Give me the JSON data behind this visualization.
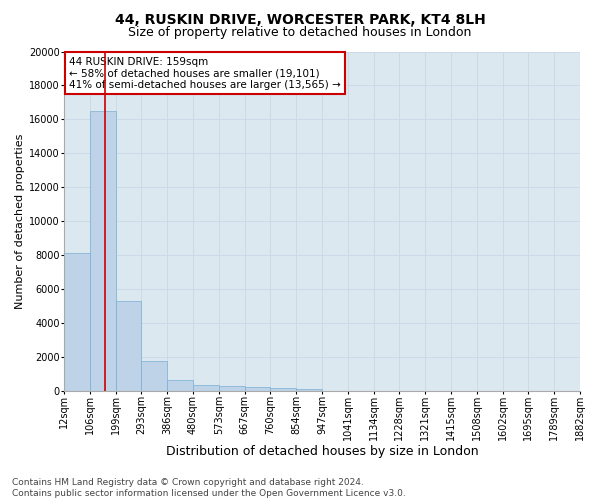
{
  "title": "44, RUSKIN DRIVE, WORCESTER PARK, KT4 8LH",
  "subtitle": "Size of property relative to detached houses in London",
  "xlabel": "Distribution of detached houses by size in London",
  "ylabel": "Number of detached properties",
  "bar_values": [
    8100,
    16500,
    5300,
    1750,
    650,
    350,
    270,
    220,
    170,
    120,
    0,
    0,
    0,
    0,
    0,
    0,
    0,
    0,
    0,
    0
  ],
  "bar_labels": [
    "12sqm",
    "106sqm",
    "199sqm",
    "293sqm",
    "386sqm",
    "480sqm",
    "573sqm",
    "667sqm",
    "760sqm",
    "854sqm",
    "947sqm",
    "1041sqm",
    "1134sqm",
    "1228sqm",
    "1321sqm",
    "1415sqm",
    "1508sqm",
    "1602sqm",
    "1695sqm",
    "1789sqm",
    "1882sqm"
  ],
  "bar_color": "#bed3e8",
  "bar_edge_color": "#7aafd4",
  "vline_x": 1.57,
  "vline_color": "#cc0000",
  "annotation_line1": "44 RUSKIN DRIVE: 159sqm",
  "annotation_line2": "← 58% of detached houses are smaller (19,101)",
  "annotation_line3": "41% of semi-detached houses are larger (13,565) →",
  "box_color": "#ffffff",
  "box_edge_color": "#cc0000",
  "ylim": [
    0,
    20000
  ],
  "yticks": [
    0,
    2000,
    4000,
    6000,
    8000,
    10000,
    12000,
    14000,
    16000,
    18000,
    20000
  ],
  "grid_color": "#c8d8e8",
  "background_color": "#dce8f0",
  "footer_text": "Contains HM Land Registry data © Crown copyright and database right 2024.\nContains public sector information licensed under the Open Government Licence v3.0.",
  "title_fontsize": 10,
  "subtitle_fontsize": 9,
  "xlabel_fontsize": 9,
  "ylabel_fontsize": 8,
  "tick_fontsize": 7,
  "annotation_fontsize": 7.5,
  "footer_fontsize": 6.5
}
